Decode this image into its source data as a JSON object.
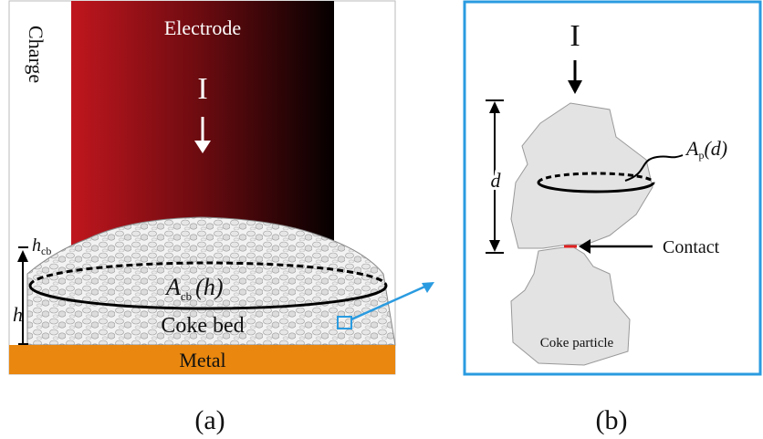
{
  "panel_a": {
    "charge": "Charge",
    "electrode": "Electrode",
    "current": "I",
    "h_cb": {
      "main": "h",
      "sub": "cb"
    },
    "h": "h",
    "area": {
      "main": "A",
      "sub": "cb",
      "arg": "(h)"
    },
    "coke_bed": "Coke bed",
    "metal": "Metal",
    "caption": "(a)"
  },
  "panel_b": {
    "current": "I",
    "d": "d",
    "area": {
      "main": "A",
      "sub": "p",
      "arg": "(d)"
    },
    "contact": "Contact",
    "particle": "Coke particle",
    "caption": "(b)"
  }
}
